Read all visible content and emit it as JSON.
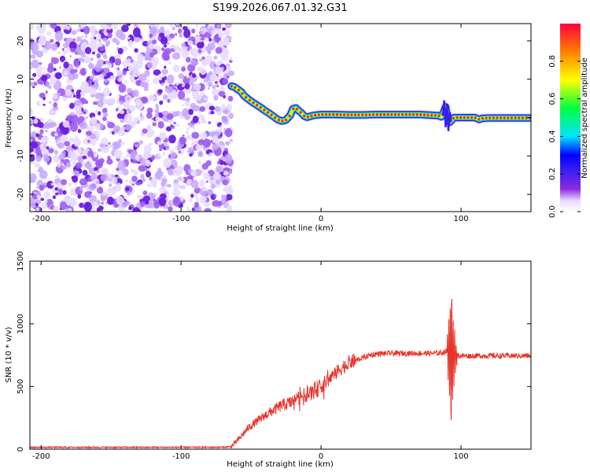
{
  "chart_data": [
    {
      "type": "heatmap",
      "title": "S199.2026.067.01.32.G31",
      "xlabel": "Height of straight line (km)",
      "ylabel": "Frequency (Hz)",
      "xlim": [
        -208,
        150
      ],
      "ylim": [
        -24.5,
        24.5
      ],
      "xticks": [
        -200,
        -100,
        0,
        100
      ],
      "yticks": [
        20,
        10,
        0,
        -10,
        -20
      ],
      "noise_region_x": [
        -208,
        -64
      ],
      "frequency_track": {
        "x": [
          -64,
          -62,
          -60,
          -57,
          -55,
          -52,
          -49,
          -46,
          -43,
          -40,
          -37,
          -34,
          -31,
          -28,
          -25,
          -22,
          -20,
          -18,
          -16,
          -14,
          -12,
          -10,
          -8,
          -5,
          0,
          10,
          20,
          30,
          40,
          50,
          60,
          70,
          80,
          84,
          86,
          88,
          89,
          90,
          92,
          95,
          100,
          105,
          110,
          113,
          115,
          120,
          130,
          140,
          150
        ],
        "y": [
          8.2,
          8.0,
          7.5,
          6.7,
          5.7,
          4.8,
          4.0,
          3.3,
          2.6,
          1.8,
          1.1,
          0.3,
          -0.5,
          -0.9,
          -0.6,
          0.6,
          2.3,
          2.5,
          1.8,
          1.2,
          0.4,
          0.1,
          0.3,
          0.6,
          0.8,
          0.8,
          0.7,
          0.7,
          0.8,
          0.8,
          0.8,
          0.8,
          0.6,
          0.5,
          0.2,
          1.8,
          2.8,
          0.5,
          -1.2,
          0.0,
          0.0,
          0.0,
          0.0,
          -0.5,
          -0.2,
          -0.1,
          -0.1,
          -0.1,
          -0.1
        ]
      }
    },
    {
      "type": "line",
      "title": "",
      "xlabel": "Height of straight line (km)",
      "ylabel": "SNR (10 * v/v)",
      "xlim": [
        -208,
        150
      ],
      "ylim": [
        0,
        1500
      ],
      "xticks": [
        -200,
        -100,
        0,
        100
      ],
      "yticks": [
        0,
        500,
        1000,
        1500
      ],
      "series": [
        {
          "name": "SNR",
          "color": "#e8332a",
          "x": [
            -208,
            -180,
            -150,
            -120,
            -90,
            -70,
            -64,
            -58,
            -52,
            -46,
            -40,
            -34,
            -28,
            -22,
            -16,
            -10,
            -4,
            0,
            5,
            10,
            15,
            20,
            25,
            30,
            35,
            40,
            50,
            60,
            70,
            80,
            86,
            90,
            92,
            94,
            96,
            100,
            110,
            120,
            130,
            140,
            150
          ],
          "y": [
            15,
            15,
            15,
            15,
            15,
            16,
            20,
            90,
            170,
            220,
            270,
            310,
            350,
            370,
            410,
            440,
            470,
            500,
            550,
            600,
            650,
            690,
            710,
            730,
            750,
            760,
            765,
            765,
            765,
            765,
            770,
            780,
            750,
            760,
            750,
            745,
            745,
            745,
            745,
            745,
            745
          ]
        }
      ]
    },
    {
      "type": "colorbar",
      "label": "Normalized spectral amplitude",
      "range": [
        0,
        1
      ],
      "ticks": [
        "0.0",
        "0.2",
        "0.4",
        "0.6",
        "0.8"
      ],
      "colors": [
        "#ffffff",
        "#8a2be2",
        "#0000ff",
        "#00ffff",
        "#00ff00",
        "#ffff00",
        "#ff8000",
        "#ff0000"
      ]
    }
  ]
}
